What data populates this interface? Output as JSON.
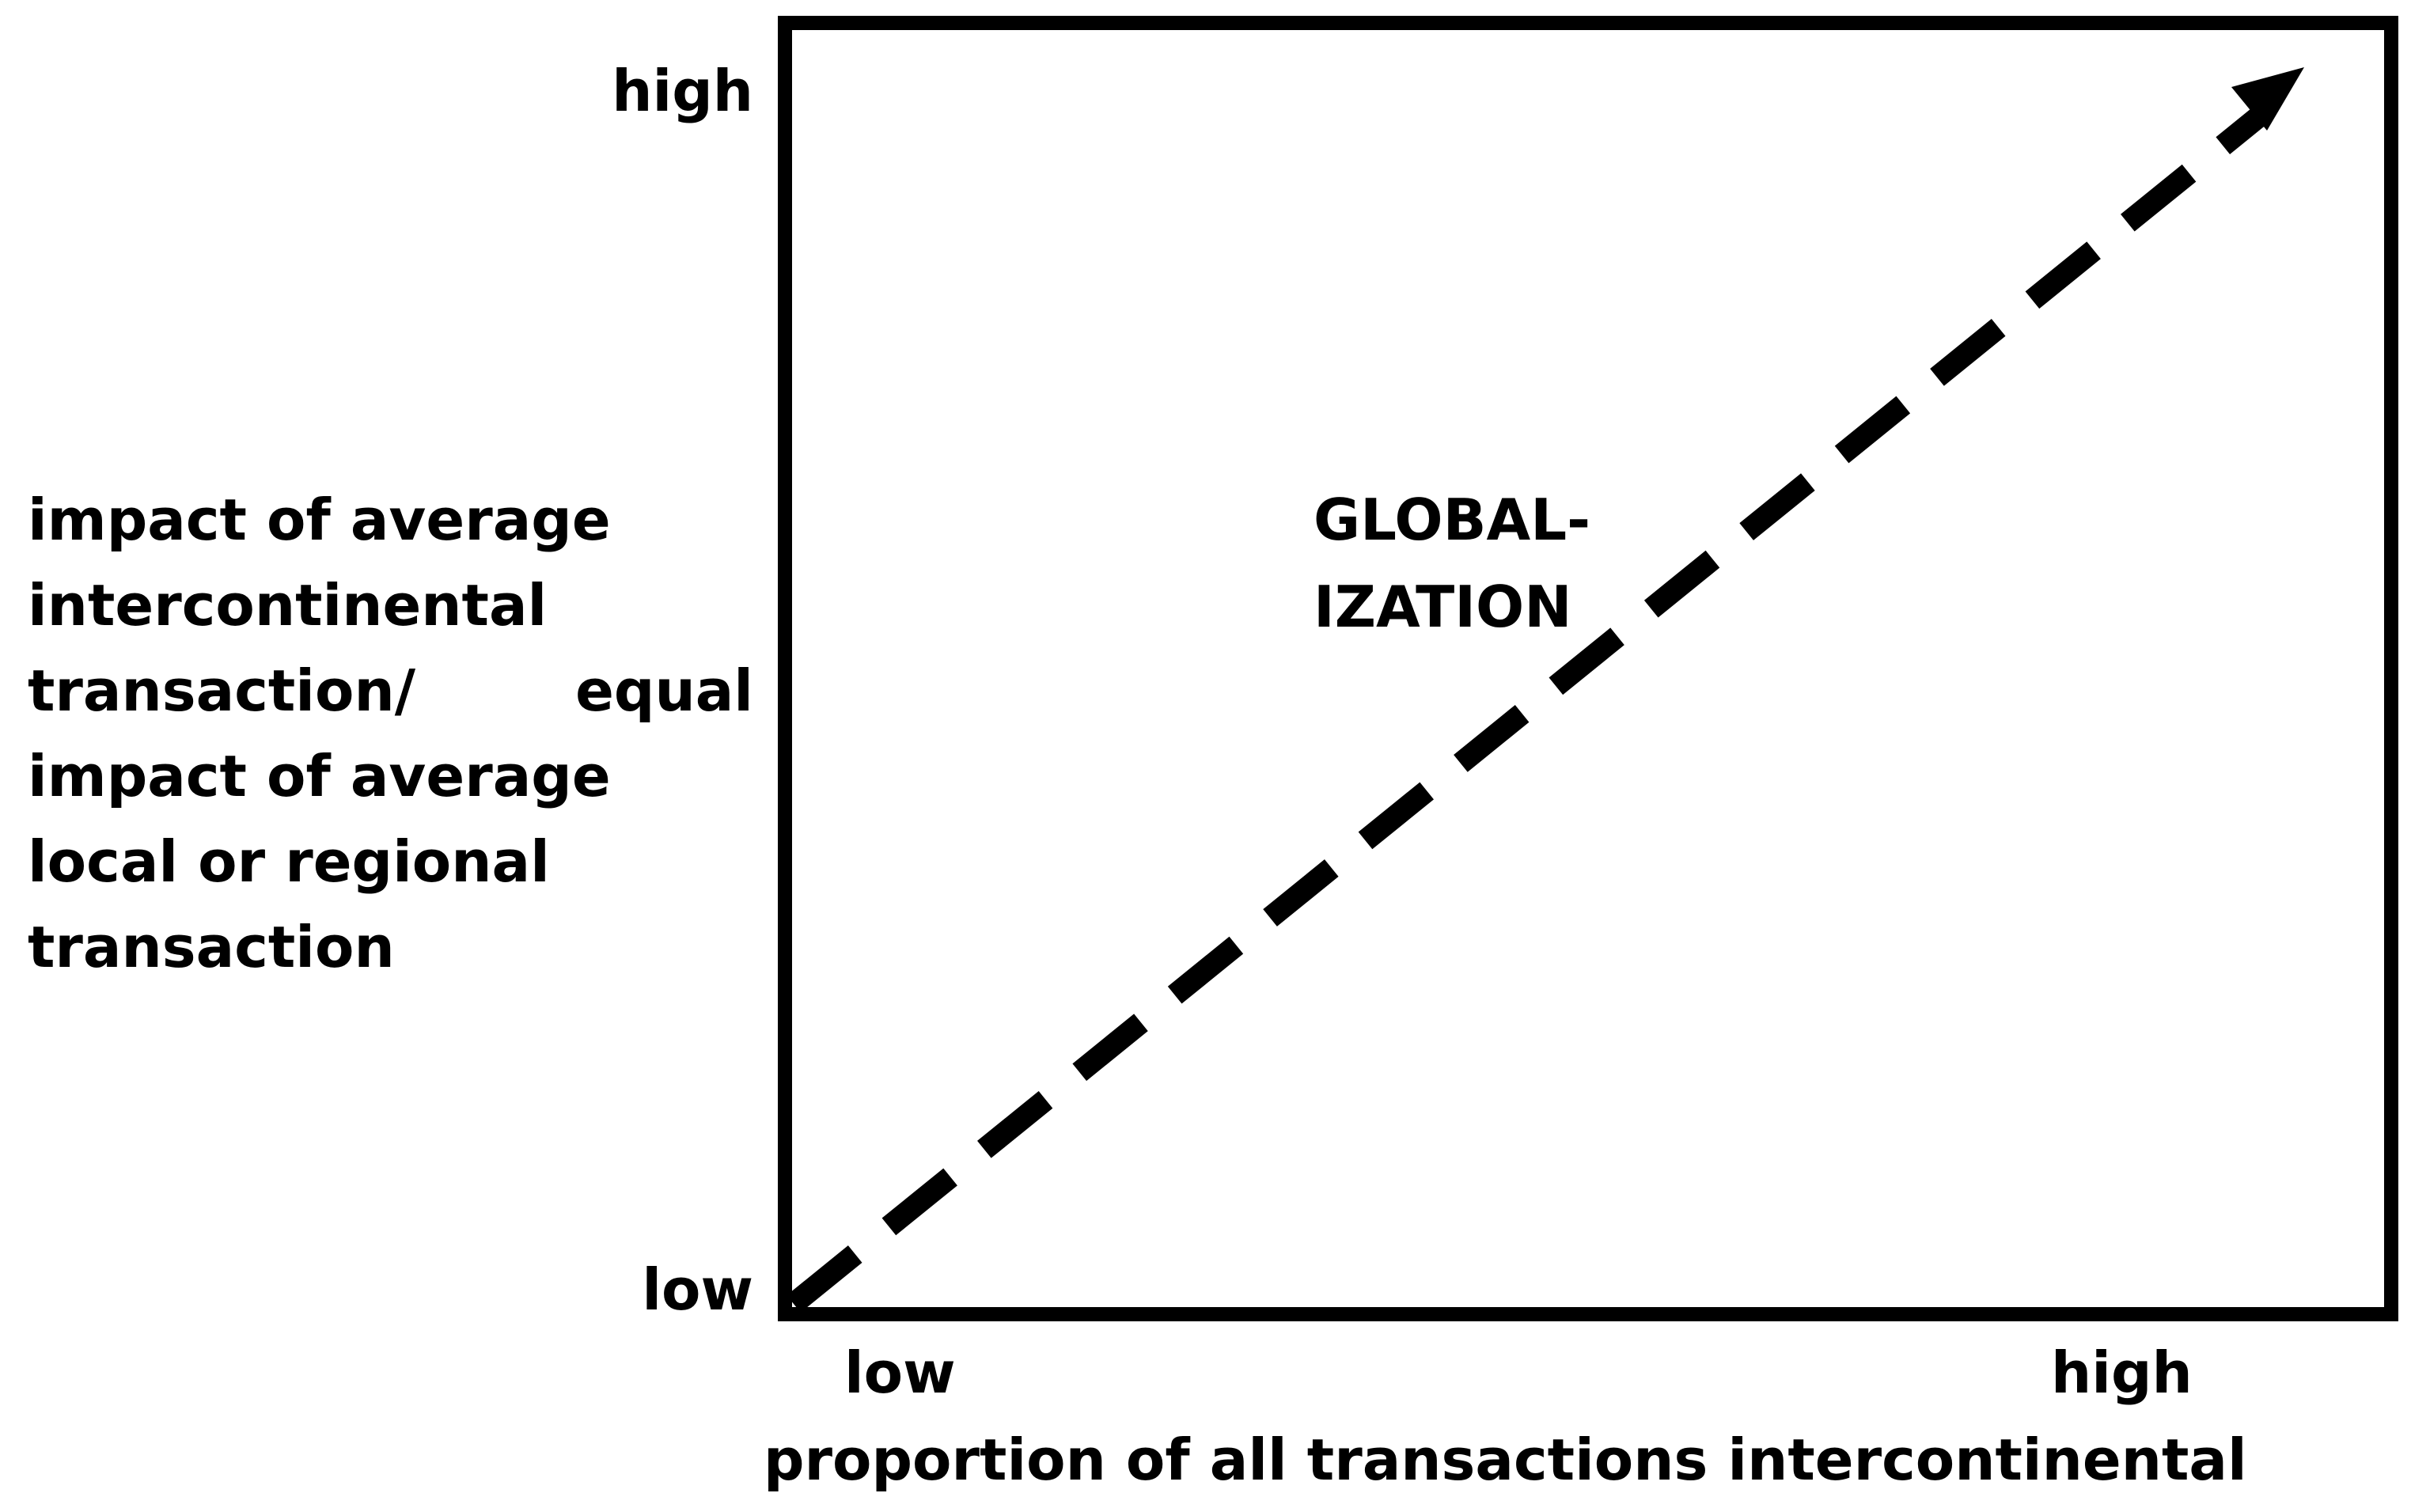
{
  "y_axis": {
    "title_lines": [
      "impact of average",
      "intercontinental",
      "transaction/",
      "impact of average",
      "local or regional",
      "transaction"
    ],
    "tick_high": "high",
    "tick_equal": "equal",
    "tick_low": "low"
  },
  "x_axis": {
    "title": "proportion of all transactions intercontinental",
    "tick_low": "low",
    "tick_high": "high"
  },
  "arrow": {
    "label_lines": [
      "GLOBAL-",
      "IZATION"
    ],
    "style": "dashed"
  },
  "colors": {
    "ink": "#000000",
    "background": "#ffffff"
  }
}
